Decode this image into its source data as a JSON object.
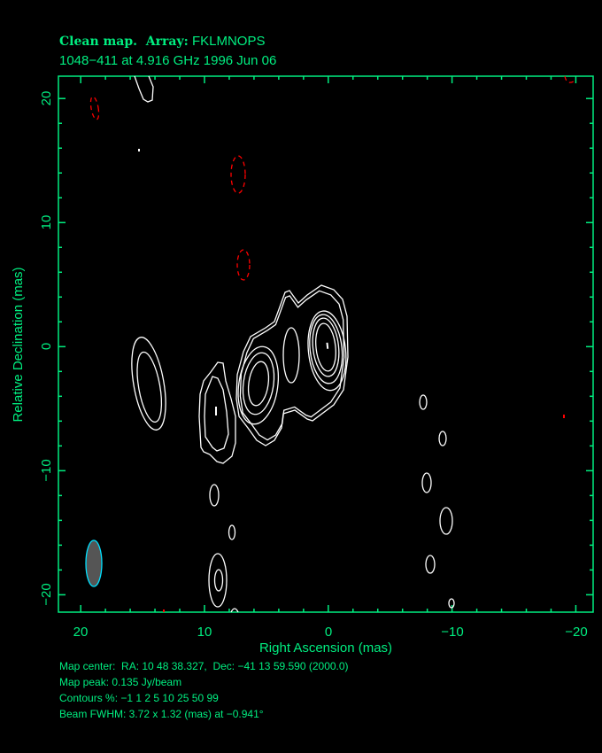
{
  "header": {
    "title_prefix": "Clean map.  Array:",
    "array": "FKLMNOPS",
    "subtitle": "1048−411 at 4.916 GHz 1996 Jun 06"
  },
  "footer": {
    "map_center": "Map center:  RA: 10 48 38.327,  Dec: −41 13 59.590 (2000.0)",
    "map_peak": "Map peak: 0.135 Jy/beam",
    "contours": "Contours %: −1 1 2 5 10 25 50 99",
    "beam": "Beam FWHM: 3.72 x 1.32 (mas) at −0.941°"
  },
  "chart_data": {
    "type": "contour",
    "xlabel": "Right Ascension  (mas)",
    "ylabel": "Relative Declination  (mas)",
    "xlim": [
      21.8,
      -21.4
    ],
    "ylim": [
      -21.4,
      21.8
    ],
    "x_ticks": [
      20,
      10,
      0,
      -10,
      -20
    ],
    "x_tick_labels": [
      "20",
      "10",
      "0",
      "−10",
      "−20"
    ],
    "y_ticks": [
      20,
      10,
      0,
      -10,
      -20
    ],
    "y_tick_labels": [
      "20",
      "10",
      "0",
      "−10",
      "−20"
    ],
    "minor_tick_step": 2,
    "contour_levels_percent": [
      -1,
      1,
      2,
      5,
      10,
      25,
      50,
      99
    ],
    "map_peak_jy_per_beam": 0.135,
    "beam": {
      "major_mas": 3.72,
      "minor_mas": 1.32,
      "pa_deg": -0.941
    },
    "colors": {
      "positive": "#ffffff",
      "negative": "#ff0000",
      "axes": "#00ee80",
      "beam_fill": "#555555",
      "beam_edge": "#00e0ff"
    },
    "grid": false
  }
}
